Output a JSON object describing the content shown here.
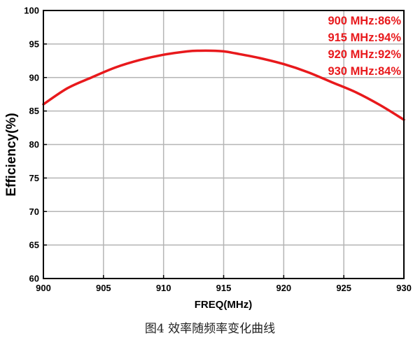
{
  "chart_data": {
    "type": "line",
    "xlabel": "FREQ(MHz)",
    "ylabel": "Efficiency(%)",
    "xlim": [
      900,
      930
    ],
    "ylim": [
      60,
      100
    ],
    "xticks": [
      900,
      905,
      910,
      915,
      920,
      925,
      930
    ],
    "yticks": [
      60,
      65,
      70,
      75,
      80,
      85,
      90,
      95,
      100
    ],
    "grid": true,
    "line_color": "#e8191c",
    "annotations": [
      "900 MHz:86%",
      "915 MHz:94%",
      "920 MHz:92%",
      "930 MHz:84%"
    ],
    "annotation_color": "#e8191c",
    "series": [
      {
        "x": [
          900,
          902,
          904,
          906,
          908,
          910,
          912,
          913,
          914,
          915,
          916,
          918,
          920,
          922,
          924,
          926,
          928,
          930
        ],
        "values": [
          86.0,
          88.4,
          90.0,
          91.5,
          92.6,
          93.4,
          93.9,
          94.0,
          94.0,
          93.9,
          93.6,
          92.9,
          92.0,
          90.8,
          89.3,
          87.8,
          85.9,
          83.7
        ]
      }
    ]
  },
  "caption": "图4 效率随频率变化曲线"
}
